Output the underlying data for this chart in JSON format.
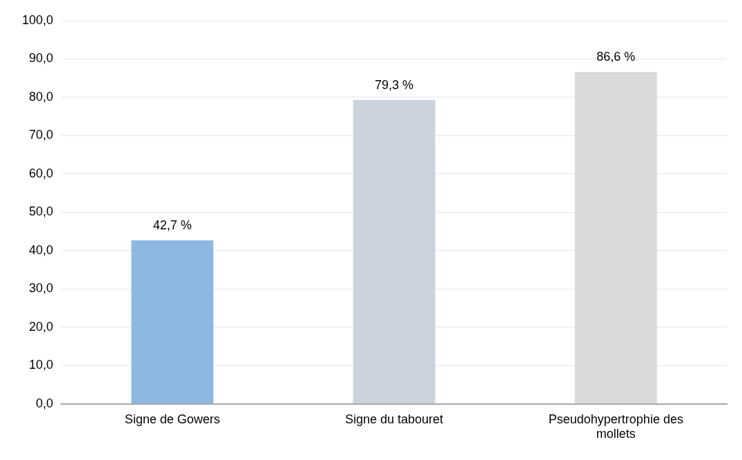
{
  "chart_data": {
    "type": "bar",
    "categories": [
      "Signe de Gowers",
      "Signe du tabouret",
      "Pseudohypertrophie des mollets"
    ],
    "values": [
      42.7,
      79.3,
      86.6
    ],
    "colors": [
      "#8db8e2",
      "#cbd3de",
      "#d9d9d9"
    ],
    "value_labels": [
      "42,7 %",
      "79,3 %",
      "86,6 %"
    ],
    "ylim": [
      0,
      100
    ],
    "yticks": [
      {
        "value": 0,
        "label": "0,0"
      },
      {
        "value": 10,
        "label": "10,0"
      },
      {
        "value": 20,
        "label": "20,0"
      },
      {
        "value": 30,
        "label": "30,0"
      },
      {
        "value": 40,
        "label": "40,0"
      },
      {
        "value": 50,
        "label": "50,0"
      },
      {
        "value": 60,
        "label": "60,0"
      },
      {
        "value": 70,
        "label": "70,0"
      },
      {
        "value": 80,
        "label": "80,0"
      },
      {
        "value": 90,
        "label": "90,0"
      },
      {
        "value": 100,
        "label": "100,0"
      }
    ],
    "grid": "y",
    "legend": false
  }
}
